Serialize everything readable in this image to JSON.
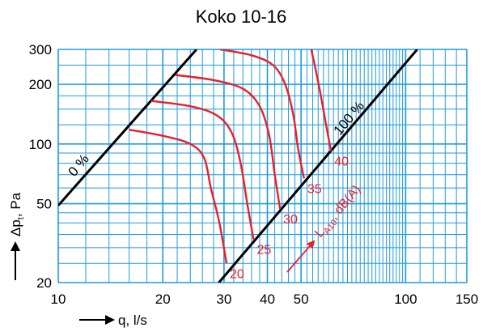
{
  "chart_data": {
    "type": "line",
    "title": "Koko 10-16",
    "xlabel": "q, l/s",
    "ylabel": "Δp",
    "ylabel_sub": "t",
    "ylabel_unit": ", Pa",
    "x_scale": "log",
    "y_scale": "log",
    "xlim": [
      10,
      150
    ],
    "ylim": [
      20,
      300
    ],
    "x_ticks": [
      10,
      20,
      30,
      40,
      50,
      100,
      150
    ],
    "y_ticks": [
      20,
      50,
      100,
      200,
      300
    ],
    "grid": true,
    "colors": {
      "grid": "#1e9be0",
      "curves": "#e8202a",
      "lines": "#000000"
    },
    "reference_lines": [
      {
        "name": "0 %",
        "points": [
          [
            10,
            49
          ],
          [
            25,
            300
          ]
        ]
      },
      {
        "name": "100 %",
        "points": [
          [
            29,
            20
          ],
          [
            108,
            300
          ]
        ]
      }
    ],
    "series": [
      {
        "name": "20",
        "points": [
          [
            16,
            118
          ],
          [
            20,
            110
          ],
          [
            24,
            100
          ],
          [
            26.3,
            85
          ],
          [
            27.5,
            60
          ],
          [
            29.1,
            40
          ],
          [
            30.5,
            25
          ]
        ]
      },
      {
        "name": "25",
        "points": [
          [
            18.5,
            165
          ],
          [
            24,
            155
          ],
          [
            28.5,
            140
          ],
          [
            31.5,
            115
          ],
          [
            33.5,
            80
          ],
          [
            35,
            50
          ],
          [
            36.5,
            33
          ]
        ]
      },
      {
        "name": "30",
        "points": [
          [
            21.7,
            223
          ],
          [
            28,
            210
          ],
          [
            34,
            190
          ],
          [
            38,
            155
          ],
          [
            40.5,
            110
          ],
          [
            42,
            70
          ],
          [
            43.5,
            47
          ]
        ]
      },
      {
        "name": "35",
        "points": [
          [
            29.2,
            300
          ],
          [
            36,
            280
          ],
          [
            41.5,
            250
          ],
          [
            45,
            200
          ],
          [
            47.5,
            140
          ],
          [
            49,
            95
          ],
          [
            51,
            67
          ]
        ]
      },
      {
        "name": "40",
        "points": [
          [
            53.5,
            300
          ],
          [
            55,
            240
          ],
          [
            57,
            175
          ],
          [
            59,
            125
          ],
          [
            61,
            92
          ]
        ]
      }
    ],
    "annotations": {
      "series_unit_label": "L",
      "series_unit_sub": "A10",
      "series_unit_suffix": ", dB(A)",
      "zero_label": "0 %",
      "hundred_label": "100 %"
    }
  }
}
